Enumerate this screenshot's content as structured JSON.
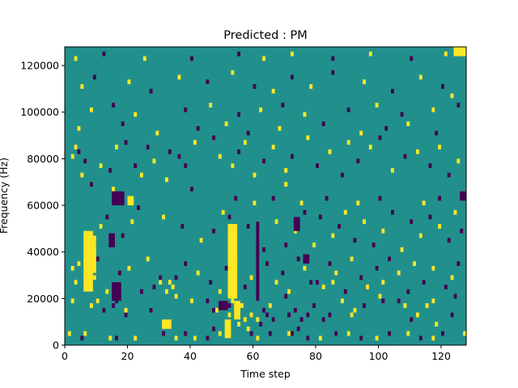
{
  "chart_data": {
    "type": "heatmap",
    "title": "Predicted : PM",
    "xlabel": "Time step",
    "ylabel": "Frequency (Hz)",
    "xlim": [
      0,
      128
    ],
    "ylim": [
      0,
      128000
    ],
    "x_ticks": [
      0,
      20,
      40,
      60,
      80,
      100,
      120
    ],
    "y_ticks": [
      0,
      20000,
      40000,
      60000,
      80000,
      100000,
      120000
    ],
    "x_tick_labels": [
      "0",
      "20",
      "40",
      "60",
      "80",
      "100",
      "120"
    ],
    "y_tick_labels": [
      "0",
      "20000",
      "40000",
      "60000",
      "80000",
      "100000",
      "120000"
    ],
    "grid": false,
    "legend": "none",
    "colormap": "viridis",
    "value_levels": [
      -1,
      0,
      1
    ],
    "colors": {
      "-1": "#440154",
      "0": "#21908d",
      "1": "#fde725"
    },
    "background_value": 0,
    "row_height_hz": 2000,
    "cells": [
      [
        -1,
        13,
        80
      ],
      [
        1,
        13,
        85
      ],
      [
        1,
        10,
        35
      ],
      [
        1,
        11,
        32
      ],
      [
        1,
        9,
        2
      ],
      [
        1,
        9,
        10
      ],
      [
        1,
        13,
        3
      ],
      [
        1,
        13,
        30
      ],
      [
        1,
        13,
        33
      ],
      [
        -1,
        12,
        28
      ],
      [
        -1,
        14,
        35
      ],
      [
        1,
        8,
        8
      ],
      [
        -1,
        7,
        12
      ],
      [
        -1,
        8,
        15
      ],
      [
        -1,
        6,
        19
      ],
      [
        -1,
        7,
        27
      ],
      [
        -1,
        9,
        16
      ],
      [
        1,
        7,
        19
      ],
      [
        1,
        7,
        48
      ],
      [
        1,
        6,
        52
      ],
      [
        1,
        8,
        54
      ],
      [
        1,
        9,
        53
      ],
      [
        1,
        8,
        56
      ],
      [
        1,
        5,
        57
      ],
      [
        1,
        6,
        59
      ],
      [
        1,
        5,
        61
      ],
      [
        -1,
        7,
        47
      ],
      [
        -1,
        8,
        52
      ],
      [
        -1,
        7,
        63
      ],
      [
        -1,
        6,
        64
      ],
      [
        -1,
        5,
        66
      ],
      [
        -1,
        6,
        71
      ],
      [
        -1,
        7,
        73
      ],
      [
        -1,
        5,
        75
      ],
      [
        -1,
        6,
        77
      ],
      [
        -1,
        8,
        79
      ],
      [
        1,
        4,
        55
      ],
      [
        1,
        3,
        58
      ],
      [
        -1,
        3,
        47
      ],
      [
        -1,
        4,
        62
      ],
      [
        -1,
        2,
        72
      ],
      [
        -1,
        3,
        74
      ],
      [
        1,
        6,
        91
      ],
      [
        1,
        7,
        92
      ],
      [
        -1,
        5,
        82
      ],
      [
        -1,
        6,
        84
      ],
      [
        -1,
        9,
        101
      ],
      [
        1,
        8,
        108
      ],
      [
        1,
        6,
        112
      ],
      [
        1,
        9,
        117
      ],
      [
        -1,
        5,
        110
      ],
      [
        -1,
        6,
        123
      ],
      [
        1,
        4,
        118
      ],
      [
        1,
        40,
        2
      ],
      [
        1,
        42,
        3
      ],
      [
        -1,
        41,
        4
      ],
      [
        -1,
        39,
        6
      ],
      [
        1,
        36,
        5
      ],
      [
        1,
        38,
        11
      ],
      [
        -1,
        37,
        14
      ],
      [
        1,
        42,
        16
      ],
      [
        -1,
        43,
        19
      ],
      [
        -1,
        38,
        22
      ],
      [
        1,
        36,
        24
      ],
      [
        -1,
        42,
        26
      ],
      [
        1,
        39,
        28
      ],
      [
        1,
        35,
        32
      ],
      [
        -1,
        41,
        33
      ],
      [
        -1,
        40,
        36
      ],
      [
        -1,
        38,
        38
      ],
      [
        1,
        43,
        41
      ],
      [
        -1,
        44,
        47
      ],
      [
        1,
        40,
        49
      ],
      [
        1,
        38,
        53
      ],
      [
        -1,
        41,
        55
      ],
      [
        1,
        43,
        57
      ],
      [
        1,
        36,
        60
      ],
      [
        -1,
        39,
        63
      ],
      [
        1,
        42,
        66
      ],
      [
        1,
        37,
        70
      ],
      [
        -1,
        40,
        72
      ],
      [
        1,
        44,
        77
      ],
      [
        -1,
        38,
        80
      ],
      [
        1,
        41,
        84
      ],
      [
        -1,
        36,
        88
      ],
      [
        1,
        43,
        90
      ],
      [
        -1,
        39,
        93
      ],
      [
        1,
        42,
        97
      ],
      [
        -1,
        44,
        100
      ],
      [
        1,
        37,
        104
      ],
      [
        -1,
        40,
        108
      ],
      [
        1,
        41,
        112
      ],
      [
        -1,
        38,
        116
      ],
      [
        1,
        42,
        119
      ],
      [
        -1,
        36,
        122
      ],
      [
        1,
        39,
        125
      ],
      [
        -1,
        34,
        8
      ],
      [
        1,
        33,
        15
      ],
      [
        -1,
        33,
        40
      ],
      [
        1,
        34,
        70
      ],
      [
        1,
        14,
        9
      ],
      [
        -1,
        21,
        9
      ],
      [
        1,
        25,
        11
      ],
      [
        -1,
        27,
        13
      ],
      [
        1,
        22,
        14
      ],
      [
        -1,
        23,
        18
      ],
      [
        1,
        26,
        21
      ],
      [
        -1,
        29,
        23
      ],
      [
        1,
        27,
        31
      ],
      [
        -1,
        25,
        37
      ],
      [
        1,
        22,
        43
      ],
      [
        -1,
        24,
        47
      ],
      [
        1,
        28,
        50
      ],
      [
        -1,
        27,
        52
      ],
      [
        1,
        20,
        53
      ],
      [
        -1,
        25,
        58
      ],
      [
        1,
        23,
        61
      ],
      [
        -1,
        20,
        63
      ],
      [
        1,
        26,
        67
      ],
      [
        -1,
        21,
        70
      ],
      [
        1,
        24,
        73
      ],
      [
        -1,
        28,
        76
      ],
      [
        1,
        21,
        79
      ],
      [
        -1,
        27,
        81
      ],
      [
        1,
        23,
        85
      ],
      [
        -1,
        25,
        87
      ],
      [
        1,
        28,
        89
      ],
      [
        -1,
        22,
        92
      ],
      [
        1,
        26,
        95
      ],
      [
        -1,
        21,
        98
      ],
      [
        1,
        24,
        101
      ],
      [
        -1,
        28,
        104
      ],
      [
        1,
        20,
        107
      ],
      [
        -1,
        26,
        110
      ],
      [
        1,
        23,
        113
      ],
      [
        -1,
        27,
        116
      ],
      [
        1,
        25,
        119
      ],
      [
        -1,
        22,
        122
      ],
      [
        1,
        28,
        124
      ],
      [
        -1,
        24,
        126
      ],
      [
        1,
        61,
        3
      ],
      [
        -1,
        62,
        12
      ],
      [
        1,
        61,
        25
      ],
      [
        -1,
        61,
        40
      ],
      [
        -1,
        62,
        55
      ],
      [
        1,
        61,
        63
      ],
      [
        1,
        62,
        72
      ],
      [
        -1,
        61,
        85
      ],
      [
        1,
        62,
        97
      ],
      [
        -1,
        61,
        110
      ],
      [
        1,
        62,
        121
      ],
      [
        1,
        62,
        126
      ],
      [
        1,
        55,
        5
      ],
      [
        -1,
        57,
        9
      ],
      [
        1,
        56,
        20
      ],
      [
        -1,
        54,
        27
      ],
      [
        1,
        57,
        36
      ],
      [
        -1,
        56,
        45
      ],
      [
        1,
        58,
        53
      ],
      [
        -1,
        55,
        60
      ],
      [
        1,
        54,
        66
      ],
      [
        -1,
        57,
        72
      ],
      [
        1,
        55,
        78
      ],
      [
        -1,
        58,
        85
      ],
      [
        1,
        56,
        95
      ],
      [
        -1,
        54,
        104
      ],
      [
        1,
        57,
        113
      ],
      [
        -1,
        55,
        120
      ],
      [
        1,
        53,
        123
      ],
      [
        1,
        50,
        8
      ],
      [
        -1,
        51,
        15
      ],
      [
        1,
        49,
        22
      ],
      [
        -1,
        50,
        38
      ],
      [
        1,
        51,
        46
      ],
      [
        -1,
        49,
        55
      ],
      [
        1,
        50,
        62
      ],
      [
        -1,
        51,
        69
      ],
      [
        1,
        49,
        76
      ],
      [
        -1,
        50,
        90
      ],
      [
        1,
        51,
        99
      ],
      [
        -1,
        49,
        107
      ],
      [
        1,
        50,
        117
      ],
      [
        -1,
        51,
        125
      ],
      [
        1,
        46,
        4
      ],
      [
        -1,
        47,
        18
      ],
      [
        1,
        45,
        29
      ],
      [
        -1,
        46,
        42
      ],
      [
        1,
        47,
        51
      ],
      [
        -1,
        45,
        58
      ],
      [
        1,
        46,
        68
      ],
      [
        -1,
        47,
        82
      ],
      [
        1,
        45,
        94
      ],
      [
        -1,
        46,
        102
      ],
      [
        1,
        47,
        109
      ],
      [
        -1,
        45,
        118
      ],
      [
        1,
        16,
        2
      ],
      [
        1,
        17,
        4
      ],
      [
        -1,
        12,
        6
      ],
      [
        1,
        12,
        7
      ],
      [
        -1,
        18,
        10
      ],
      [
        1,
        11,
        13
      ],
      [
        -1,
        15,
        17
      ],
      [
        1,
        16,
        20
      ],
      [
        -1,
        11,
        24
      ],
      [
        1,
        18,
        26
      ],
      [
        -1,
        14,
        30
      ],
      [
        1,
        12,
        34
      ],
      [
        -1,
        17,
        38
      ],
      [
        1,
        15,
        42
      ],
      [
        -1,
        13,
        46
      ],
      [
        1,
        11,
        49
      ],
      [
        -1,
        16,
        51
      ],
      [
        1,
        18,
        54
      ],
      [
        -1,
        12,
        57
      ],
      [
        1,
        14,
        59
      ],
      [
        -1,
        17,
        64
      ],
      [
        1,
        13,
        67
      ],
      [
        -1,
        15,
        69
      ],
      [
        1,
        11,
        71
      ],
      [
        -1,
        18,
        74
      ],
      [
        1,
        16,
        76
      ],
      [
        -1,
        13,
        78
      ],
      [
        1,
        12,
        82
      ],
      [
        -1,
        17,
        84
      ],
      [
        1,
        15,
        86
      ],
      [
        -1,
        11,
        89
      ],
      [
        1,
        18,
        91
      ],
      [
        -1,
        14,
        94
      ],
      [
        1,
        12,
        96
      ],
      [
        -1,
        16,
        99
      ],
      [
        1,
        13,
        101
      ],
      [
        -1,
        18,
        103
      ],
      [
        1,
        15,
        106
      ],
      [
        -1,
        11,
        109
      ],
      [
        1,
        17,
        111
      ],
      [
        -1,
        13,
        114
      ],
      [
        1,
        16,
        117
      ],
      [
        -1,
        12,
        121
      ],
      [
        1,
        14,
        123
      ],
      [
        -1,
        17,
        125
      ],
      [
        -1,
        31,
        54
      ],
      [
        1,
        30,
        60
      ],
      [
        -1,
        31,
        66
      ],
      [
        1,
        30,
        75
      ],
      [
        -1,
        31,
        83
      ],
      [
        1,
        30,
        93
      ],
      [
        -1,
        31,
        100
      ],
      [
        1,
        30,
        114
      ],
      [
        -1,
        31,
        119
      ],
      [
        1,
        32,
        127
      ],
      [
        1,
        9,
        40
      ],
      [
        -1,
        9,
        45
      ],
      [
        1,
        8,
        65
      ],
      [
        -1,
        10,
        70
      ],
      [
        1,
        9,
        88
      ],
      [
        -1,
        8,
        95
      ],
      [
        1,
        10,
        100
      ],
      [
        -1,
        9,
        106
      ],
      [
        1,
        8,
        115
      ],
      [
        -1,
        10,
        124
      ],
      [
        1,
        2,
        1
      ],
      [
        -1,
        1,
        5
      ],
      [
        1,
        2,
        6
      ],
      [
        1,
        1,
        14
      ],
      [
        -1,
        1,
        16
      ],
      [
        1,
        1,
        22
      ],
      [
        -1,
        2,
        31
      ],
      [
        1,
        1,
        35
      ],
      [
        -1,
        2,
        38
      ],
      [
        1,
        1,
        41
      ],
      [
        -1,
        1,
        45
      ],
      [
        1,
        2,
        49
      ],
      [
        -1,
        2,
        59
      ],
      [
        1,
        1,
        61
      ],
      [
        -1,
        2,
        65
      ],
      [
        1,
        2,
        71
      ],
      [
        -1,
        1,
        77
      ],
      [
        1,
        1,
        81
      ],
      [
        -1,
        2,
        86
      ],
      [
        1,
        2,
        90
      ],
      [
        -1,
        1,
        94
      ],
      [
        1,
        1,
        99
      ],
      [
        -1,
        2,
        103
      ],
      [
        1,
        2,
        109
      ],
      [
        -1,
        1,
        113
      ],
      [
        1,
        1,
        117
      ],
      [
        -1,
        2,
        120
      ],
      [
        1,
        2,
        127
      ]
    ],
    "blocks": [
      {
        "value": 1,
        "x0": 6,
        "x1": 9,
        "y0": 23000,
        "y1": 49000
      },
      {
        "value": 1,
        "x0": 7,
        "x1": 10,
        "y0": 31000,
        "y1": 47000
      },
      {
        "value": -1,
        "x0": 14,
        "x1": 16,
        "y0": 42000,
        "y1": 48000
      },
      {
        "value": -1,
        "x0": 15,
        "x1": 18,
        "y0": 19000,
        "y1": 27000
      },
      {
        "value": -1,
        "x0": 15,
        "x1": 19,
        "y0": 60000,
        "y1": 66000
      },
      {
        "value": 1,
        "x0": 20,
        "x1": 22,
        "y0": 60000,
        "y1": 64000
      },
      {
        "value": 1,
        "x0": 31,
        "x1": 34,
        "y0": 7000,
        "y1": 11000
      },
      {
        "value": 1,
        "x0": 52,
        "x1": 55,
        "y0": 20000,
        "y1": 52000
      },
      {
        "value": 1,
        "x0": 51,
        "x1": 53,
        "y0": 3000,
        "y1": 11000
      },
      {
        "value": 1,
        "x0": 54,
        "x1": 56,
        "y0": 11000,
        "y1": 19000
      },
      {
        "value": -1,
        "x0": 49,
        "x1": 52,
        "y0": 15000,
        "y1": 19000
      },
      {
        "value": -1,
        "x0": 61,
        "x1": 62,
        "y0": 19000,
        "y1": 53000
      },
      {
        "value": -1,
        "x0": 73,
        "x1": 75,
        "y0": 49000,
        "y1": 55000
      },
      {
        "value": -1,
        "x0": 76,
        "x1": 78,
        "y0": 35000,
        "y1": 39000
      },
      {
        "value": 1,
        "x0": 124,
        "x1": 128,
        "y0": 124000,
        "y1": 128000
      },
      {
        "value": -1,
        "x0": 126,
        "x1": 128,
        "y0": 62000,
        "y1": 66000
      }
    ]
  }
}
